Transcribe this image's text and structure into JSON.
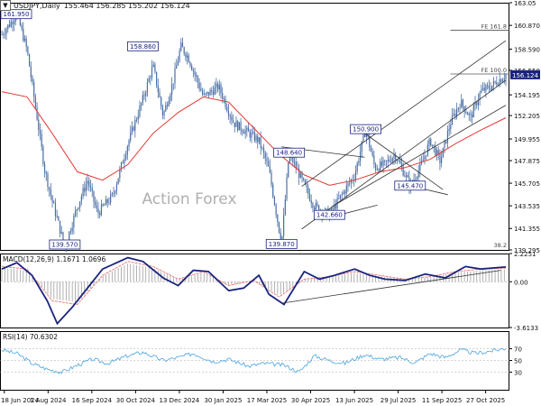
{
  "header": {
    "symbol": "USDJPY,Daily",
    "ohlc": "155.464 156.285 155.202 156.124"
  },
  "watermark": "Action Forex",
  "colors": {
    "candle": "#4a6fa5",
    "ma": "#e53935",
    "channel": "#333333",
    "macd_line": "#1a237e",
    "macd_signal": "#e57373",
    "macd_hist": "#9e9e9e",
    "rsi": "#4aa3df",
    "fe_line": "#555555",
    "last_price_bg": "#1a237e"
  },
  "chart_data": [
    {
      "type": "candlestick",
      "title": "USDJPY,Daily",
      "ylim": [
        139.295,
        163.05
      ],
      "y_ticks": [
        "163.05",
        "160.870",
        "158.590",
        "156.550",
        "154.195",
        "152.205",
        "149.955",
        "147.875",
        "145.705",
        "143.535",
        "141.355",
        "139.295"
      ],
      "x_ticks": [
        "18 Jun 2024",
        "1 Aug 2024",
        "16 Sep 2024",
        "30 Oct 2024",
        "13 Dec 2024",
        "30 Jan 2025",
        "17 Mar 2025",
        "30 Apr 2025",
        "13 Jun 2025",
        "29 Jul 2025",
        "11 Sep 2025",
        "27 Oct 2025"
      ],
      "last_price": 156.124,
      "fib_levels": [
        {
          "label": "FE 161.8",
          "value": 160.4
        },
        {
          "label": "FE 100.0",
          "value": 156.2
        },
        {
          "label": "38.2",
          "value": 139.4
        }
      ],
      "annotations": [
        {
          "label": "161.950",
          "x": 0,
          "y": 161.95
        },
        {
          "label": "158.860",
          "x": 0.28,
          "y": 158.86
        },
        {
          "label": "139.570",
          "x": 0.125,
          "y": 139.57
        },
        {
          "label": "139.870",
          "x": 0.555,
          "y": 139.87
        },
        {
          "label": "148.640",
          "x": 0.57,
          "y": 148.64
        },
        {
          "label": "142.660",
          "x": 0.65,
          "y": 142.66
        },
        {
          "label": "150.900",
          "x": 0.722,
          "y": 150.9
        },
        {
          "label": "145.470",
          "x": 0.81,
          "y": 145.47
        }
      ],
      "series": [
        {
          "name": "Close",
          "x": [
            0.0,
            0.03,
            0.05,
            0.07,
            0.085,
            0.1,
            0.125,
            0.15,
            0.17,
            0.19,
            0.22,
            0.25,
            0.28,
            0.3,
            0.32,
            0.34,
            0.355,
            0.37,
            0.4,
            0.43,
            0.46,
            0.49,
            0.51,
            0.53,
            0.555,
            0.57,
            0.6,
            0.62,
            0.65,
            0.68,
            0.7,
            0.722,
            0.74,
            0.76,
            0.78,
            0.8,
            0.81,
            0.83,
            0.85,
            0.87,
            0.89,
            0.91,
            0.93,
            0.95,
            0.97,
            1.0
          ],
          "values": [
            160.0,
            161.95,
            158.5,
            152.0,
            147.0,
            144.0,
            139.57,
            143.5,
            146.0,
            142.8,
            144.5,
            149.5,
            153.8,
            157.0,
            152.2,
            155.5,
            158.86,
            157.8,
            154.0,
            155.0,
            151.5,
            150.5,
            149.8,
            147.0,
            139.87,
            148.64,
            145.5,
            143.5,
            142.66,
            145.0,
            146.5,
            150.9,
            147.2,
            147.5,
            148.5,
            146.5,
            145.47,
            147.2,
            149.8,
            147.8,
            151.5,
            153.5,
            152.0,
            154.5,
            155.0,
            156.124
          ]
        },
        {
          "name": "MA",
          "x": [
            0.0,
            0.05,
            0.1,
            0.15,
            0.2,
            0.25,
            0.3,
            0.35,
            0.4,
            0.45,
            0.5,
            0.55,
            0.6,
            0.65,
            0.7,
            0.75,
            0.8,
            0.85,
            0.9,
            0.95,
            1.0
          ],
          "values": [
            154.5,
            154.0,
            150.5,
            146.8,
            146.0,
            147.5,
            150.5,
            152.5,
            154.0,
            153.5,
            151.0,
            148.5,
            146.5,
            145.5,
            146.0,
            146.8,
            147.2,
            148.0,
            149.5,
            150.8,
            152.0
          ]
        }
      ]
    },
    {
      "type": "line",
      "title": "MACD(12,26,9) 1.1671 1.0696",
      "ylim": [
        -3.6133,
        2.2251
      ],
      "y_ticks": [
        "2.2251",
        "0.00",
        "-3.6133"
      ],
      "series": [
        {
          "name": "MACD",
          "x": [
            0.0,
            0.03,
            0.06,
            0.09,
            0.11,
            0.14,
            0.17,
            0.2,
            0.25,
            0.28,
            0.32,
            0.35,
            0.38,
            0.41,
            0.45,
            0.48,
            0.51,
            0.53,
            0.56,
            0.6,
            0.63,
            0.66,
            0.7,
            0.73,
            0.76,
            0.8,
            0.84,
            0.88,
            0.92,
            0.95,
            1.0
          ],
          "values": [
            1.0,
            1.5,
            0.5,
            -1.5,
            -3.3,
            -2.0,
            -0.5,
            1.0,
            1.9,
            1.6,
            0.3,
            -0.3,
            0.9,
            0.8,
            -0.7,
            -0.5,
            0.5,
            -1.0,
            -1.8,
            0.8,
            0.2,
            0.5,
            1.0,
            0.5,
            0.2,
            0.1,
            0.6,
            0.3,
            1.2,
            1.0,
            1.1671
          ]
        },
        {
          "name": "Signal",
          "x": [
            0.0,
            0.05,
            0.1,
            0.15,
            0.2,
            0.25,
            0.3,
            0.35,
            0.4,
            0.45,
            0.5,
            0.55,
            0.6,
            0.65,
            0.7,
            0.75,
            0.8,
            0.85,
            0.9,
            0.95,
            1.0
          ],
          "values": [
            1.2,
            1.0,
            -1.5,
            -1.8,
            0.5,
            1.6,
            1.2,
            0.2,
            0.8,
            -0.3,
            0.1,
            -1.2,
            0.2,
            0.4,
            0.8,
            0.5,
            0.2,
            0.4,
            0.8,
            1.0,
            1.0696
          ]
        }
      ]
    },
    {
      "type": "line",
      "title": "RSI(14) 70.6302",
      "ylim": [
        0,
        100
      ],
      "y_ticks": [
        "70",
        "50",
        "30"
      ],
      "series": [
        {
          "name": "RSI",
          "x": [
            0.0,
            0.03,
            0.06,
            0.09,
            0.12,
            0.15,
            0.18,
            0.21,
            0.25,
            0.28,
            0.32,
            0.35,
            0.38,
            0.42,
            0.45,
            0.49,
            0.52,
            0.56,
            0.59,
            0.62,
            0.65,
            0.68,
            0.72,
            0.75,
            0.79,
            0.82,
            0.85,
            0.88,
            0.91,
            0.94,
            0.97,
            1.0
          ],
          "values": [
            68,
            62,
            45,
            35,
            30,
            42,
            52,
            45,
            58,
            64,
            50,
            55,
            62,
            48,
            52,
            40,
            45,
            42,
            30,
            58,
            50,
            45,
            60,
            52,
            55,
            46,
            62,
            55,
            68,
            62,
            66,
            70.63
          ]
        }
      ]
    }
  ]
}
